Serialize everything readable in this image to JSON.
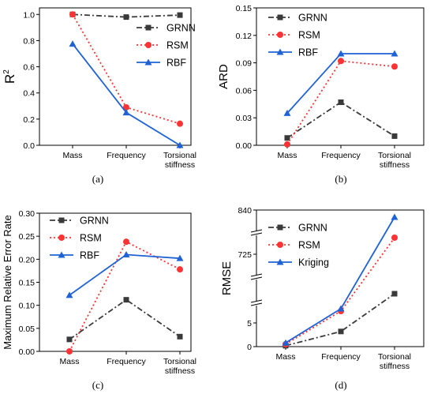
{
  "colors": {
    "GRNN": "#3a3a3a",
    "RSM": "#ff3333",
    "RBF": "#1f62d6",
    "Kriging": "#1f62d6"
  },
  "chart_data": [
    {
      "type": "line",
      "panel_label": "(a)",
      "ylabel": "R",
      "ylabel_sup": "2",
      "categories": [
        "Mass",
        "Frequency",
        "Torsional stiffness"
      ],
      "yticks": [
        "0.0",
        "0.2",
        "0.4",
        "0.6",
        "0.8",
        "1.0"
      ],
      "ylim": [
        0,
        1.05
      ],
      "legend_position": "right",
      "series": [
        {
          "name": "GRNN",
          "values": [
            1.0,
            0.98,
            0.995
          ],
          "marker": "square",
          "line": "dashdot"
        },
        {
          "name": "RSM",
          "values": [
            1.0,
            0.29,
            0.165
          ],
          "marker": "circle",
          "line": "dotted"
        },
        {
          "name": "RBF",
          "values": [
            0.775,
            0.25,
            0.0
          ],
          "marker": "triangle",
          "line": "solid"
        }
      ]
    },
    {
      "type": "line",
      "panel_label": "(b)",
      "ylabel": "ARD",
      "ylabel_sup": "",
      "categories": [
        "Mass",
        "Frequency",
        "Torsional stiffness"
      ],
      "yticks": [
        "0.00",
        "0.03",
        "0.06",
        "0.09",
        "0.12",
        "0.15"
      ],
      "ylim": [
        0,
        0.15
      ],
      "legend_position": "top-left",
      "series": [
        {
          "name": "GRNN",
          "values": [
            0.008,
            0.047,
            0.01
          ],
          "marker": "square",
          "line": "dashdot"
        },
        {
          "name": "RSM",
          "values": [
            0.001,
            0.092,
            0.086
          ],
          "marker": "circle",
          "line": "dotted"
        },
        {
          "name": "RBF",
          "values": [
            0.035,
            0.1,
            0.1
          ],
          "marker": "triangle",
          "line": "solid"
        }
      ]
    },
    {
      "type": "line",
      "panel_label": "(c)",
      "ylabel": "Maximum Relative Error Rate",
      "ylabel_sup": "",
      "categories": [
        "Mass",
        "Frequency",
        "Torsional stiffness"
      ],
      "yticks": [
        "0.00",
        "0.05",
        "0.10",
        "0.15",
        "0.20",
        "0.25",
        "0.30"
      ],
      "ylim": [
        0,
        0.3
      ],
      "legend_position": "top-left",
      "series": [
        {
          "name": "GRNN",
          "values": [
            0.026,
            0.112,
            0.032
          ],
          "marker": "square",
          "line": "dashdot"
        },
        {
          "name": "RSM",
          "values": [
            0.0,
            0.238,
            0.178
          ],
          "marker": "circle",
          "line": "dotted"
        },
        {
          "name": "RBF",
          "values": [
            0.122,
            0.21,
            0.202
          ],
          "marker": "triangle",
          "line": "solid"
        }
      ]
    },
    {
      "type": "line",
      "panel_label": "(d)",
      "ylabel": "RMSE",
      "ylabel_sup": "",
      "categories": [
        "Mass",
        "Frequency",
        "Torsional stiffness"
      ],
      "yticks": [
        "0",
        "5",
        "725",
        "840"
      ],
      "broken_axis": true,
      "legend_position": "top-left",
      "series": [
        {
          "name": "GRNN",
          "values": [
            0.2,
            3.2,
            null
          ],
          "marker": "square",
          "line": "dashdot"
        },
        {
          "name": "RSM",
          "values": [
            0.5,
            7.5,
            null
          ],
          "marker": "circle",
          "line": "dotted"
        },
        {
          "name": "Kriging",
          "values": [
            0.8,
            8.0,
            null
          ],
          "marker": "triangle",
          "line": "solid"
        }
      ]
    }
  ]
}
